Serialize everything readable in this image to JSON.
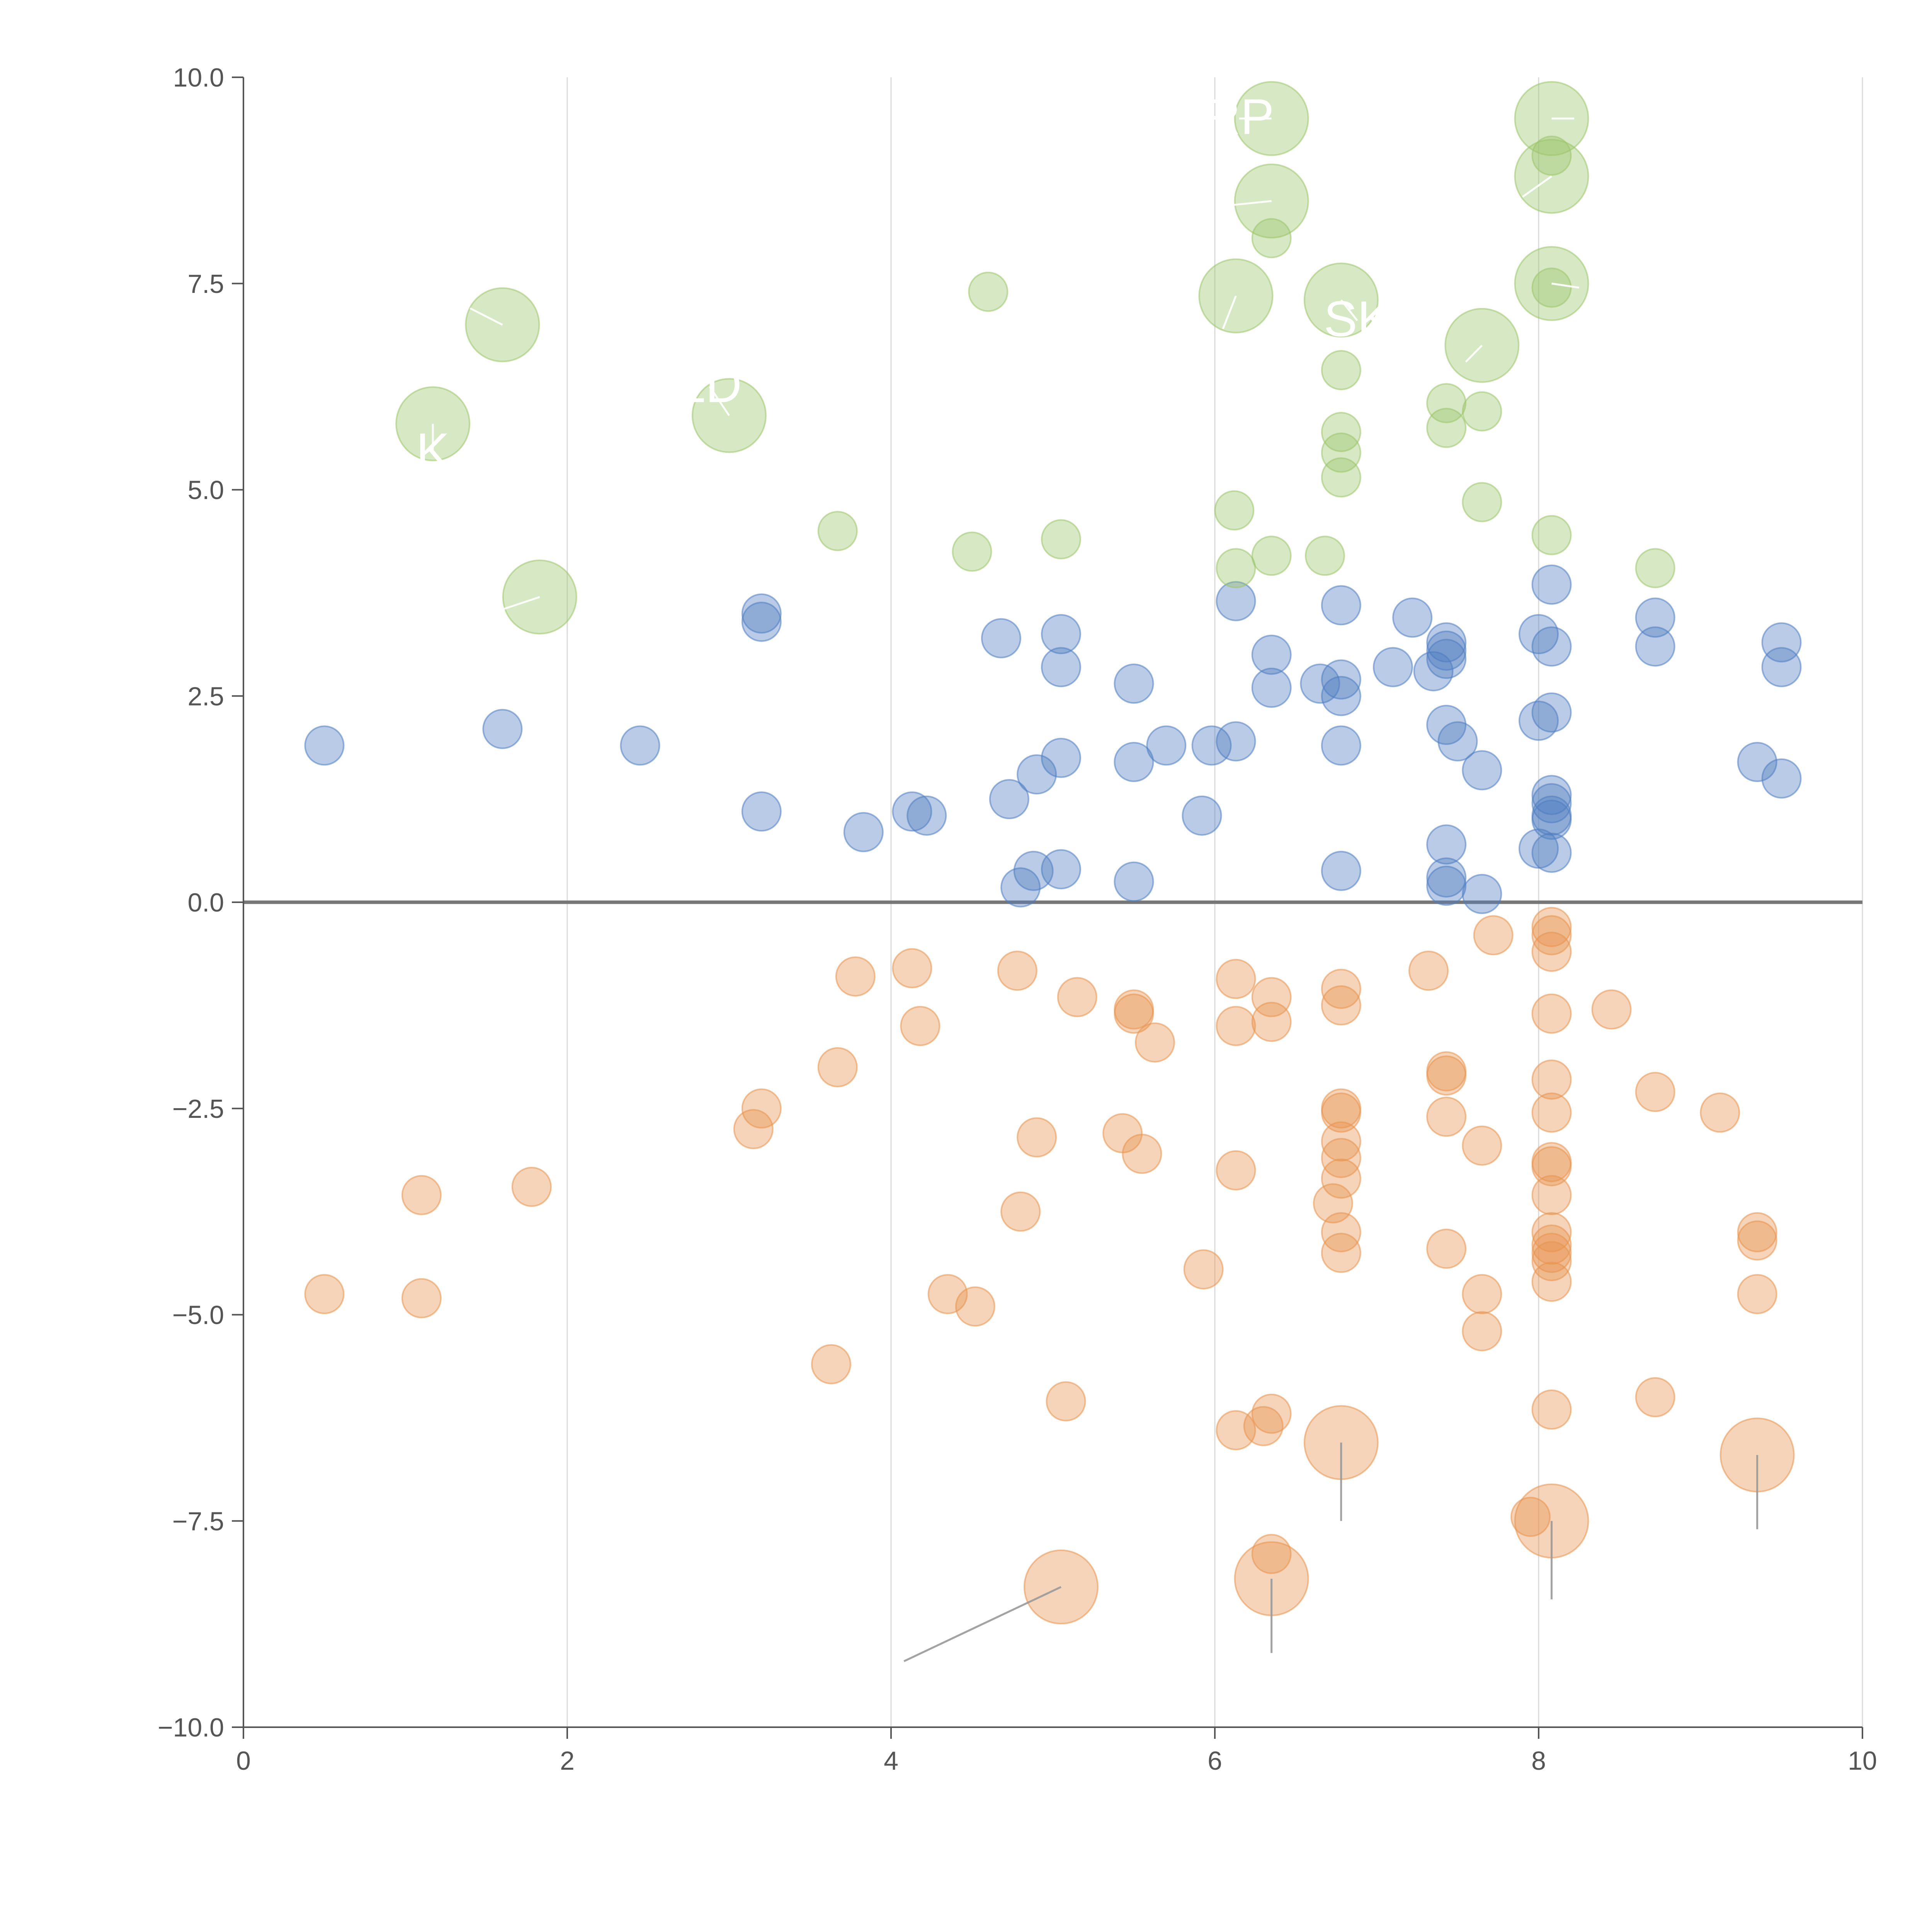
{
  "chart_data": {
    "type": "scatter",
    "title": "",
    "xlabel": "",
    "ylabel": "",
    "xlim": [
      0,
      10
    ],
    "ylim": [
      -10,
      10
    ],
    "x_ticks": [
      0,
      2,
      4,
      6,
      8,
      10
    ],
    "x_tick_labels": [
      "0",
      "2",
      "4",
      "6",
      "8",
      "10"
    ],
    "y_ticks": [
      10,
      7.5,
      5,
      2.5,
      0,
      -2.5,
      -5,
      -7.5,
      -10
    ],
    "y_tick_labels": [
      "10.0",
      "7.5",
      "5.0",
      "2.5",
      "0.0",
      "−2.5",
      "−5.0",
      "−7.5",
      "−10.0"
    ],
    "grid": "vertical",
    "zero_line": 0,
    "colors": {
      "blue": "#4f7ec1",
      "green": "#9cc56b",
      "orange": "#e8944f",
      "axis": "#555555",
      "grid": "#d9d9d9",
      "zero": "#777777",
      "leader": "#999999"
    },
    "series": [
      {
        "key": "blue",
        "points": [
          [
            0.5,
            1.9
          ],
          [
            1.6,
            2.1
          ],
          [
            2.45,
            1.9
          ],
          [
            3.2,
            3.5
          ],
          [
            3.2,
            3.4
          ],
          [
            3.2,
            1.1
          ],
          [
            3.83,
            0.85
          ],
          [
            4.13,
            1.1
          ],
          [
            4.22,
            1.05
          ],
          [
            4.68,
            3.2
          ],
          [
            4.73,
            1.25
          ],
          [
            4.9,
            1.55
          ],
          [
            5.05,
            3.25
          ],
          [
            5.05,
            2.85
          ],
          [
            5.05,
            1.75
          ],
          [
            4.88,
            0.38
          ],
          [
            4.8,
            0.18
          ],
          [
            5.05,
            0.4
          ],
          [
            5.5,
            2.65
          ],
          [
            5.5,
            1.7
          ],
          [
            5.7,
            1.9
          ],
          [
            5.5,
            0.25
          ],
          [
            5.92,
            1.05
          ],
          [
            5.98,
            1.9
          ],
          [
            6.13,
            1.95
          ],
          [
            6.13,
            3.65
          ],
          [
            6.35,
            3.0
          ],
          [
            6.35,
            2.6
          ],
          [
            6.65,
            2.65
          ],
          [
            6.78,
            3.6
          ],
          [
            6.78,
            2.7
          ],
          [
            6.78,
            2.5
          ],
          [
            6.78,
            1.9
          ],
          [
            6.78,
            0.38
          ],
          [
            7.1,
            2.85
          ],
          [
            7.22,
            3.45
          ],
          [
            7.35,
            2.8
          ],
          [
            7.43,
            3.15
          ],
          [
            7.43,
            3.05
          ],
          [
            7.43,
            2.95
          ],
          [
            7.43,
            2.15
          ],
          [
            7.5,
            1.95
          ],
          [
            7.43,
            0.7
          ],
          [
            7.43,
            0.3
          ],
          [
            7.43,
            0.2
          ],
          [
            7.65,
            1.6
          ],
          [
            7.65,
            0.1
          ],
          [
            8.0,
            3.25
          ],
          [
            8.08,
            3.85
          ],
          [
            8.08,
            3.1
          ],
          [
            8.0,
            2.2
          ],
          [
            8.08,
            2.3
          ],
          [
            8.08,
            1.3
          ],
          [
            8.08,
            1.2
          ],
          [
            8.08,
            1.0
          ],
          [
            8.08,
            1.05
          ],
          [
            8.0,
            0.65
          ],
          [
            8.08,
            0.6
          ],
          [
            8.72,
            3.45
          ],
          [
            8.72,
            3.1
          ],
          [
            9.35,
            1.7
          ],
          [
            9.5,
            3.15
          ],
          [
            9.5,
            2.85
          ],
          [
            9.5,
            1.5
          ]
        ]
      },
      {
        "key": "green",
        "points": [
          [
            3.67,
            4.5
          ],
          [
            4.5,
            4.25
          ],
          [
            4.6,
            7.4
          ],
          [
            5.05,
            4.4
          ],
          [
            6.13,
            4.05
          ],
          [
            6.12,
            4.75
          ],
          [
            6.35,
            4.2
          ],
          [
            6.35,
            8.05
          ],
          [
            6.68,
            4.2
          ],
          [
            6.78,
            6.45
          ],
          [
            6.78,
            5.7
          ],
          [
            6.78,
            5.45
          ],
          [
            6.78,
            5.15
          ],
          [
            7.43,
            6.05
          ],
          [
            7.43,
            5.75
          ],
          [
            7.65,
            5.95
          ],
          [
            7.65,
            4.85
          ],
          [
            8.08,
            4.45
          ],
          [
            8.08,
            9.05
          ],
          [
            8.08,
            7.45
          ],
          [
            8.72,
            4.05
          ]
        ]
      },
      {
        "key": "orange",
        "points": [
          [
            0.5,
            -4.75
          ],
          [
            1.1,
            -3.55
          ],
          [
            1.1,
            -4.8
          ],
          [
            1.78,
            -3.45
          ],
          [
            3.15,
            -2.75
          ],
          [
            3.2,
            -2.5
          ],
          [
            3.67,
            -2.0
          ],
          [
            3.63,
            -5.6
          ],
          [
            3.78,
            -0.9
          ],
          [
            4.13,
            -0.8
          ],
          [
            4.18,
            -1.5
          ],
          [
            4.35,
            -4.75
          ],
          [
            4.52,
            -4.9
          ],
          [
            4.78,
            -0.83
          ],
          [
            4.8,
            -3.75
          ],
          [
            4.9,
            -2.85
          ],
          [
            5.08,
            -6.05
          ],
          [
            5.15,
            -1.15
          ],
          [
            5.43,
            -2.8
          ],
          [
            5.5,
            -1.3
          ],
          [
            5.5,
            -1.35
          ],
          [
            5.55,
            -3.05
          ],
          [
            5.63,
            -1.7
          ],
          [
            5.93,
            -4.45
          ],
          [
            6.13,
            -0.93
          ],
          [
            6.13,
            -1.5
          ],
          [
            6.13,
            -3.25
          ],
          [
            6.13,
            -6.4
          ],
          [
            6.3,
            -6.35
          ],
          [
            6.35,
            -6.2
          ],
          [
            6.35,
            -7.9
          ],
          [
            6.35,
            -1.15
          ],
          [
            6.35,
            -1.45
          ],
          [
            6.73,
            -3.65
          ],
          [
            6.78,
            -1.05
          ],
          [
            6.78,
            -1.25
          ],
          [
            6.78,
            -2.5
          ],
          [
            6.78,
            -2.55
          ],
          [
            6.78,
            -2.9
          ],
          [
            6.78,
            -3.1
          ],
          [
            6.78,
            -3.35
          ],
          [
            6.78,
            -4.0
          ],
          [
            6.78,
            -4.25
          ],
          [
            7.32,
            -0.83
          ],
          [
            7.43,
            -2.05
          ],
          [
            7.43,
            -2.1
          ],
          [
            7.43,
            -2.6
          ],
          [
            7.43,
            -4.2
          ],
          [
            7.65,
            -2.95
          ],
          [
            7.65,
            -4.75
          ],
          [
            7.65,
            -5.2
          ],
          [
            7.72,
            -0.4
          ],
          [
            7.95,
            -7.45
          ],
          [
            8.08,
            -0.3
          ],
          [
            8.08,
            -0.4
          ],
          [
            8.08,
            -0.6
          ],
          [
            8.08,
            -1.35
          ],
          [
            8.08,
            -2.15
          ],
          [
            8.08,
            -2.55
          ],
          [
            8.08,
            -3.15
          ],
          [
            8.08,
            -3.2
          ],
          [
            8.08,
            -3.55
          ],
          [
            8.08,
            -4.0
          ],
          [
            8.08,
            -4.15
          ],
          [
            8.08,
            -4.25
          ],
          [
            8.08,
            -4.35
          ],
          [
            8.08,
            -4.6
          ],
          [
            8.08,
            -6.15
          ],
          [
            8.45,
            -1.3
          ],
          [
            8.72,
            -2.3
          ],
          [
            8.72,
            -6.0
          ],
          [
            9.12,
            -2.55
          ],
          [
            9.35,
            -4.0
          ],
          [
            9.35,
            -4.1
          ],
          [
            9.35,
            -4.75
          ]
        ]
      }
    ],
    "highlighted_points": [
      {
        "key": "green",
        "x": 1.17,
        "y": 5.8,
        "label": "K",
        "lx": 1.17,
        "ly": 5.45
      },
      {
        "key": "green",
        "x": 1.6,
        "y": 7.0,
        "label": "",
        "lx": 1.4,
        "ly": 7.2
      },
      {
        "key": "green",
        "x": 1.83,
        "y": 3.7,
        "label": "",
        "lx": 1.6,
        "ly": 3.55
      },
      {
        "key": "green",
        "x": 3.0,
        "y": 5.9,
        "label": "LD",
        "lx": 2.88,
        "ly": 6.25
      },
      {
        "key": "green",
        "x": 6.13,
        "y": 7.35,
        "label": "",
        "lx": 6.05,
        "ly": 6.95
      },
      {
        "key": "green",
        "x": 6.35,
        "y": 9.5,
        "label": "RP",
        "lx": 6.15,
        "ly": 9.5
      },
      {
        "key": "green",
        "x": 6.35,
        "y": 8.5,
        "label": "",
        "lx": 6.1,
        "ly": 8.45
      },
      {
        "key": "green",
        "x": 6.78,
        "y": 7.3,
        "label": "SK",
        "lx": 6.88,
        "ly": 7.05
      },
      {
        "key": "green",
        "x": 7.65,
        "y": 6.75,
        "label": "",
        "lx": 7.55,
        "ly": 6.55
      },
      {
        "key": "green",
        "x": 8.08,
        "y": 9.5,
        "label": "",
        "lx": 8.22,
        "ly": 9.5
      },
      {
        "key": "green",
        "x": 8.08,
        "y": 8.8,
        "label": "",
        "lx": 7.9,
        "ly": 8.55
      },
      {
        "key": "green",
        "x": 8.08,
        "y": 7.5,
        "label": "",
        "lx": 8.25,
        "ly": 7.45
      },
      {
        "key": "orange",
        "x": 6.78,
        "y": -6.55,
        "label": "",
        "lx": 6.78,
        "ly": -7.5
      },
      {
        "key": "orange",
        "x": 9.35,
        "y": -6.7,
        "label": "",
        "lx": 9.35,
        "ly": -7.6
      },
      {
        "key": "orange",
        "x": 8.08,
        "y": -7.5,
        "label": "",
        "lx": 8.08,
        "ly": -8.45
      },
      {
        "key": "orange",
        "x": 6.35,
        "y": -8.2,
        "label": "",
        "lx": 6.35,
        "ly": -9.1
      },
      {
        "key": "orange",
        "x": 5.05,
        "y": -8.3,
        "label": "",
        "lx": 4.08,
        "ly": -9.2
      }
    ]
  }
}
